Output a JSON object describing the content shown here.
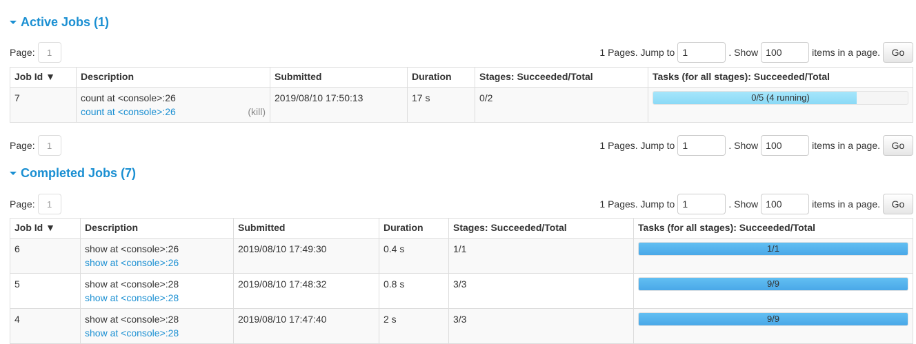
{
  "pager": {
    "page_label": "Page:",
    "page": "1",
    "pages_text": "1 Pages. Jump to",
    "jump_value": "1",
    "show_text": ". Show",
    "show_value": "100",
    "items_text": "items in a page.",
    "go": "Go"
  },
  "headers_common": {
    "job_id": "Job Id ▼",
    "description": "Description",
    "submitted": "Submitted",
    "duration": "Duration",
    "stages": "Stages: Succeeded/Total",
    "tasks": "Tasks (for all stages): Succeeded/Total"
  },
  "active": {
    "title": "Active Jobs (1)",
    "rows": [
      {
        "id": "7",
        "desc": "count at <console>:26",
        "link": "count at <console>:26",
        "kill": "(kill)",
        "submitted": "2019/08/10 17:50:13",
        "duration": "17 s",
        "stages": "0/2",
        "tasks": "0/5 (4 running)",
        "succeeded_fraction": 0,
        "running_fraction": 0.8
      }
    ]
  },
  "completed": {
    "title": "Completed Jobs (7)",
    "rows": [
      {
        "id": "6",
        "desc": "show at <console>:26",
        "link": "show at <console>:26",
        "submitted": "2019/08/10 17:49:30",
        "duration": "0.4 s",
        "stages": "1/1",
        "tasks": "1/1",
        "succeeded_fraction": 1
      },
      {
        "id": "5",
        "desc": "show at <console>:28",
        "link": "show at <console>:28",
        "submitted": "2019/08/10 17:48:32",
        "duration": "0.8 s",
        "stages": "3/3",
        "tasks": "9/9",
        "succeeded_fraction": 1
      },
      {
        "id": "4",
        "desc": "show at <console>:28",
        "link": "show at <console>:28",
        "submitted": "2019/08/10 17:47:40",
        "duration": "2 s",
        "stages": "3/3",
        "tasks": "9/9",
        "succeeded_fraction": 1
      }
    ]
  },
  "colors": {
    "accent": "#1a8fd2",
    "running": "#94dff9",
    "succeeded": "#5bb2ec"
  }
}
